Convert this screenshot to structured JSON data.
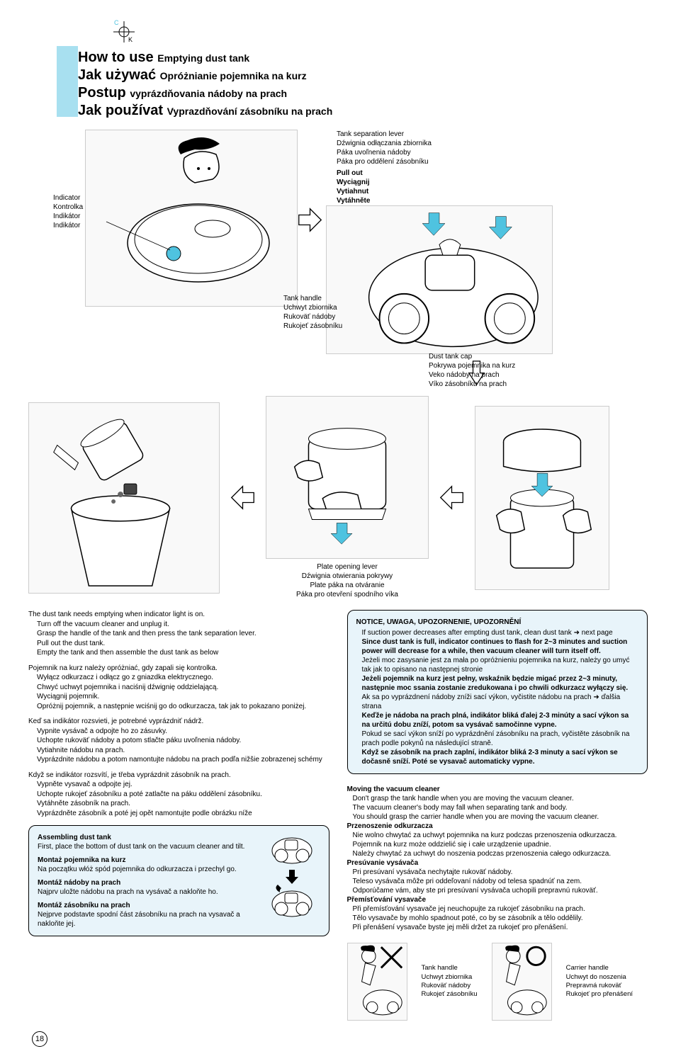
{
  "registration": {
    "c": "C",
    "k": "K"
  },
  "titles": [
    {
      "main": "How to use",
      "sub": "Emptying dust tank"
    },
    {
      "main": "Jak używać",
      "sub": "Opróżnianie pojemnika na kurz"
    },
    {
      "main": "Postup",
      "sub": "vyprázdňovania nádoby na prach"
    },
    {
      "main": "Jak používat",
      "sub": "Vyprazdňování zásobníku na prach"
    }
  ],
  "colors": {
    "cyan_block": "#a8e0f0",
    "notice_bg": "#e8f4fa",
    "arrow_cyan": "#4FC3E0"
  },
  "indicator": {
    "en": "Indicator",
    "pl": "Kontrolka",
    "sk": "Indikátor",
    "cz": "Indikátor"
  },
  "separation": {
    "en": "Tank separation lever",
    "pl": "Dźwignia odłączania zbiornika",
    "sk": "Páka  uvoľnenia nádoby",
    "cz": "Páka pro oddělení zásobníku"
  },
  "pullout": {
    "en": "Pull out",
    "pl": "Wyciągnij",
    "sk": "Vytiahnut",
    "cz": "Vytáhněte"
  },
  "tankhandle": {
    "en": "Tank handle",
    "pl": "Uchwyt zbiornika",
    "sk": "Rukoväť nádoby",
    "cz": "Rukojeť zásobníku"
  },
  "dustcap": {
    "en": "Dust tank cap",
    "pl": "Pokrywa pojemnika na kurz",
    "sk": "Veko nádoby na prach",
    "cz": "Víko zásobníku na prach"
  },
  "plate": {
    "en": "Plate opening lever",
    "pl": "Dźwignia otwierania pokrywy",
    "sk": "Plate páka na otváranie",
    "cz": "Páka pro otevření spodního víka"
  },
  "instructions": [
    {
      "lead": "The dust tank needs emptying when indicator light is on.",
      "subs": [
        "Turn off the vacuum cleaner and unplug it.",
        "Grasp the handle of the tank and then press the tank separation lever.",
        "Pull out the dust tank.",
        "Empty the tank and then assemble the dust tank as below"
      ]
    },
    {
      "lead": "Pojemnik na kurz należy opróżniać, gdy zapali się kontrolka.",
      "subs": [
        "Wyłącz odkurzacz i odłącz go z gniazdka elektrycznego.",
        "Chwyć uchwyt pojemnika i naciśnij dźwignię oddzielającą.",
        "Wyciągnij pojemnik.",
        "Opróżnij pojemnik, a następnie wciśnij go do odkurzacza, tak jak to pokazano poniżej."
      ]
    },
    {
      "lead": "Keď sa indikátor rozsvieti, je potrebné vyprázdniť nádrž.",
      "subs": [
        "Vypnite vysávač a odpojte ho zo zásuvky.",
        "Uchopte rukoväť nádoby a potom stlačte páku uvoľnenia nádoby.",
        "Vytiahnite nádobu na prach.",
        "Vyprázdnite nádobu a potom namontujte nádobu na prach podľa nižšie zobrazenej schémy"
      ]
    },
    {
      "lead": "Když se indikátor rozsvítí, je třeba vyprázdnit zásobník na prach.",
      "subs": [
        "Vypněte vysavač a odpojte jej.",
        "Uchopte rukojeť zásobníku a poté zatlačte na páku oddělení zásobníku.",
        "Vytáhněte zásobník na prach.",
        "Vyprázdněte zásobník a poté jej opět namontujte podle obrázku níže"
      ]
    }
  ],
  "assembling": [
    {
      "title": "Assembling dust tank",
      "text": "First, place the bottom of dust tank on the vacuum cleaner and tilt."
    },
    {
      "title": "Montaż pojemnika na kurz",
      "text": "Na początku włóż spód pojemnika do odkurzacza i przechyl go."
    },
    {
      "title": "Montáž nádoby na prach",
      "text": "Najprv uložte nádobu na prach na vysávač a nakloňte ho."
    },
    {
      "title": "Montáž zásobníku na prach",
      "text": "Nejprve podstavte spodní část zásobníku na prach na vysavač a nakloňte jej."
    }
  ],
  "notice": {
    "heading": "NOTICE, UWAGA, UPOZORNENIE, UPOZORNĚNÍ",
    "items": [
      {
        "plain": "If suction power decreases after empting dust tank, clean dust tank",
        "arrow": "next page"
      },
      {
        "bold": "Since dust tank is full, indicator continues to flash for 2~3 minutes and suction power will decrease for a while, then vacuum cleaner will turn itself off."
      },
      {
        "plain": "Jeżeli moc zasysanie jest za mała po opróżnieniu pojemnika na kurz, należy go umyć tak jak to opisano na następnej stronie"
      },
      {
        "bold": "Jeżeli pojemnik na kurz jest pełny, wskaźnik będzie migać przez 2~3 minuty, następnie moc ssania zostanie zredukowana i po chwili odkurzacz wyłączy się."
      },
      {
        "plain": "Ak sa po vyprázdnení nádoby zníži sací výkon, vyčistite nádobu na prach",
        "arrow": "ďalšia strana"
      },
      {
        "bold": "Keďže je nádoba na prach plná, indikátor bliká ďalej 2-3 minúty a sací výkon sa na určitú dobu zníží, potom sa vysávač samočinne vypne."
      },
      {
        "plain": "Pokud se sací výkon sníží po vyprázdnění zásobníku na prach, vyčistěte zásobník na prach podle pokynů na následující straně."
      },
      {
        "bold": "Když se zásobník na prach zaplní, indikátor bliká 2-3 minuty a sací výkon se dočasně sníží. Poté se vysavač automaticky vypne."
      }
    ]
  },
  "moving": [
    {
      "title": "Moving the vacuum cleaner",
      "lines": [
        "Don't grasp the tank handle when you are moving the vacuum cleaner.",
        "The vacuum cleaner's body may fall when separating tank and body.",
        "You should grasp the carrier handle when you are moving the vacuum cleaner."
      ]
    },
    {
      "title": "Przenoszenie odkurzacza",
      "lines": [
        "Nie wolno chwytać za uchwyt pojemnika na kurz podczas przenoszenia odkurzacza.",
        "Pojemnik na kurz może oddzielić się i całe urządzenie upadnie.",
        "Należy chwytać za uchwyt do noszenia podczas przenoszenia całego odkurzacza."
      ]
    },
    {
      "title": "Presúvanie vysávača",
      "lines": [
        "Pri presúvaní vysávača nechytajte rukoväť nádoby.",
        "Teleso vysávača môže pri oddeľovaní nádoby od telesa spadnúť na zem.",
        "Odporúčame vám, aby ste pri presúvaní vysávača uchopili prepravnú rukoväť."
      ]
    },
    {
      "title": "Přemísťování vysavače",
      "lines": [
        "Při přemísťování vysavače jej neuchopujte za rukojeť zásobníku na prach.",
        "Tělo vysavače by mohlo spadnout poté, co by se zásobník a tělo oddělily.",
        "Při přenášení vysavače byste jej měli držet za rukojeť pro přenášení."
      ]
    }
  ],
  "handles": {
    "tank": {
      "en": "Tank handle",
      "pl": "Uchwyt zbiornika",
      "sk": "Rukoväť nádoby",
      "cz": "Rukojeť zásobníku"
    },
    "carrier": {
      "en": "Carrier handle",
      "pl": "Uchwyt do noszenia",
      "sk": "Prepravná rukoväť",
      "cz": "Rukojeť pro přenášení"
    }
  },
  "page_number": "18"
}
